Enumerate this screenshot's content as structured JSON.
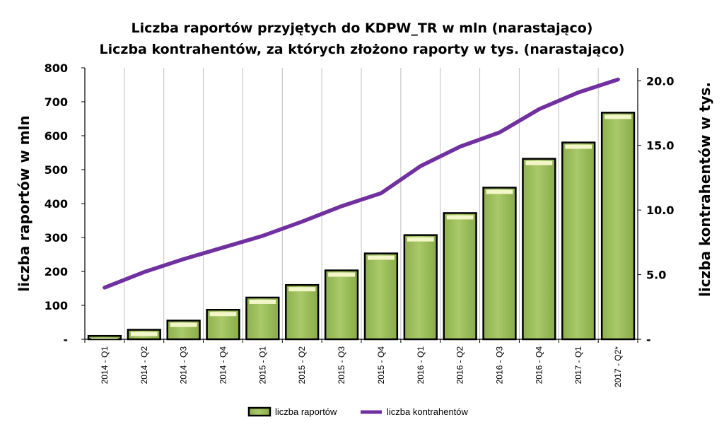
{
  "chart_data": {
    "type": "bar",
    "title": "Liczba raportów przyjętych do KDPW_TR w mln (narastająco)",
    "subtitle": "Liczba kontrahentów, za których złożono raporty w tys. (narastająco)",
    "categories": [
      "2014 - Q1",
      "2014 - Q2",
      "2014 - Q3",
      "2014 - Q4",
      "2015 - Q1",
      "2015 - Q2",
      "2015 - Q3",
      "2015 - Q4",
      "2016 - Q1",
      "2016 - Q2",
      "2016 - Q3",
      "2016 - Q4",
      "2017 - Q1",
      "2017 - Q2*"
    ],
    "series": [
      {
        "name": "liczba raportów",
        "type": "bar",
        "axis": "left",
        "color": "#9bbb59",
        "values": [
          10,
          28,
          55,
          87,
          123,
          160,
          203,
          253,
          307,
          372,
          447,
          532,
          580,
          668
        ]
      },
      {
        "name": "liczba kontrahentów",
        "type": "line",
        "axis": "right",
        "color": "#7030a0",
        "values": [
          4.0,
          5.2,
          6.2,
          7.1,
          8.0,
          9.1,
          10.3,
          11.3,
          13.4,
          14.9,
          16.0,
          17.8,
          19.1,
          20.1
        ]
      }
    ],
    "ylabel": "liczba raportów w mln",
    "y2label": "liczba kontrahentów w tys.",
    "ylim": [
      0,
      800
    ],
    "y2lim": [
      0,
      21
    ],
    "yticks": [
      {
        "value": 0,
        "label": "-"
      },
      {
        "value": 100,
        "label": "100"
      },
      {
        "value": 200,
        "label": "200"
      },
      {
        "value": 300,
        "label": "300"
      },
      {
        "value": 400,
        "label": "400"
      },
      {
        "value": 500,
        "label": "500"
      },
      {
        "value": 600,
        "label": "600"
      },
      {
        "value": 700,
        "label": "700"
      },
      {
        "value": 800,
        "label": "800"
      }
    ],
    "y2ticks": [
      {
        "value": 0,
        "label": "-"
      },
      {
        "value": 5,
        "label": "5.0"
      },
      {
        "value": 10,
        "label": "10.0"
      },
      {
        "value": 15,
        "label": "15.0"
      },
      {
        "value": 20,
        "label": "20.0"
      }
    ],
    "grid": "vertical",
    "legend": "bottom"
  }
}
